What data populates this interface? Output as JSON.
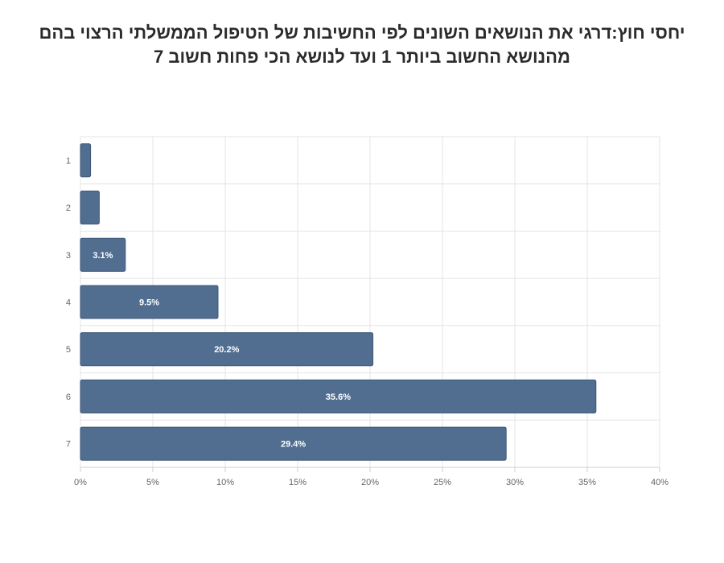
{
  "chart_data": {
    "type": "bar",
    "orientation": "horizontal",
    "title_lines": [
      "יחסי חוץ:דרגי את הנושאים השונים לפי החשיבות של הטיפול הממשלתי הרצוי בהם",
      "מהנושא החשוב ביותר 1 ועד לנושא הכי פחות חשוב 7"
    ],
    "categories": [
      "1",
      "2",
      "3",
      "4",
      "5",
      "6",
      "7"
    ],
    "values": [
      0.7,
      1.3,
      3.1,
      9.5,
      20.2,
      35.6,
      29.4
    ],
    "data_labels": [
      "",
      "",
      "3.1%",
      "9.5%",
      "20.2%",
      "35.6%",
      "29.4%"
    ],
    "x_ticks": [
      "0%",
      "5%",
      "10%",
      "15%",
      "20%",
      "25%",
      "30%",
      "35%",
      "40%"
    ],
    "xlim": [
      0,
      40
    ],
    "grid": true,
    "legend": "none",
    "colors": {
      "bar": "#516e91",
      "bar_border": "#3f5878",
      "label": "#ffffff",
      "grid": "#e4e4e4",
      "tick": "#666666"
    }
  }
}
